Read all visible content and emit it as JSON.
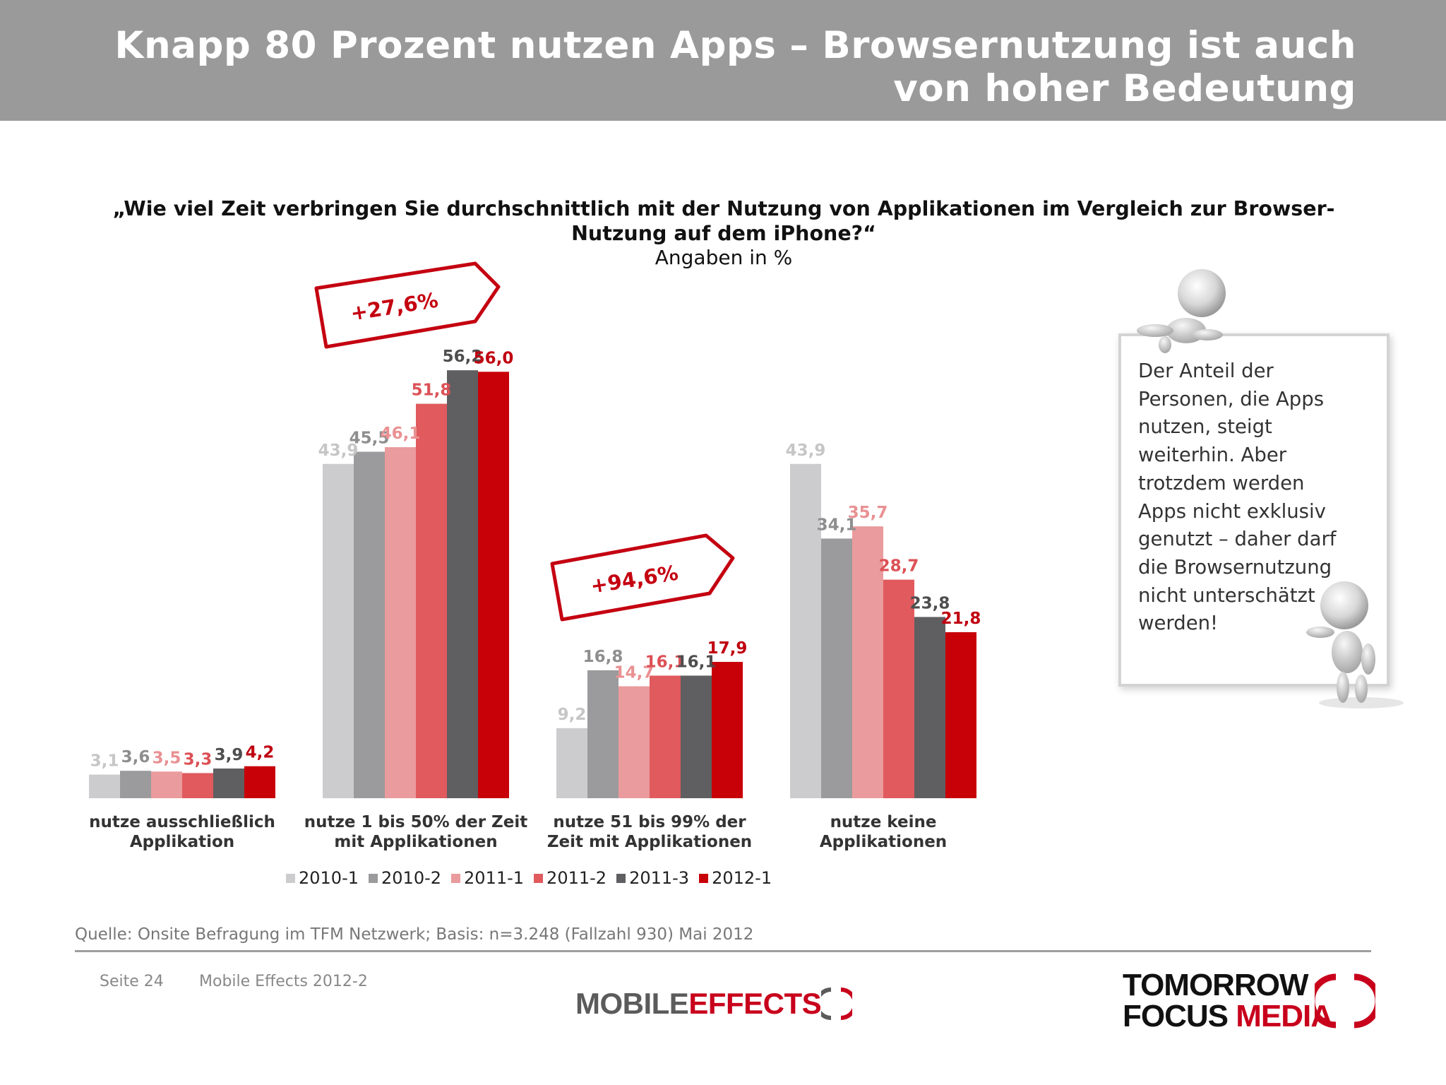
{
  "header": {
    "title_line1": "Knapp 80 Prozent nutzen Apps – Browsernutzung ist auch",
    "title_line2": "von hoher Bedeutung"
  },
  "question": {
    "line1": "„Wie viel Zeit verbringen Sie durchschnittlich mit der Nutzung von Applikationen im Vergleich zur Browser-",
    "line2": "Nutzung auf dem iPhone?“",
    "subtitle": "Angaben in %"
  },
  "chart_data": {
    "type": "bar",
    "categories": [
      [
        "nutze ausschließlich",
        "Applikation"
      ],
      [
        "nutze 1 bis 50% der Zeit",
        "mit Applikationen"
      ],
      [
        "nutze 51 bis 99% der",
        "Zeit mit Applikationen"
      ],
      [
        "nutze keine",
        "Applikationen"
      ]
    ],
    "series": [
      {
        "name": "2010-1",
        "color": "#cccbcd",
        "label_color": "#c6c6c6",
        "values": [
          3.1,
          43.9,
          9.2,
          43.9
        ],
        "labels": [
          "3,1",
          "43,9",
          "9,2",
          "43,9"
        ]
      },
      {
        "name": "2010-2",
        "color": "#9b9a9c",
        "label_color": "#8e8e8e",
        "values": [
          3.6,
          45.5,
          16.8,
          34.1
        ],
        "labels": [
          "3,6",
          "45,5",
          "16,8",
          "34,1"
        ]
      },
      {
        "name": "2011-1",
        "color": "#ea9b9d",
        "label_color": "#e99193",
        "values": [
          3.5,
          46.1,
          14.7,
          35.7
        ],
        "labels": [
          "3,5",
          "46,1",
          "14,7",
          "35,7"
        ]
      },
      {
        "name": "2011-2",
        "color": "#e05a5e",
        "label_color": "#dc5156",
        "values": [
          3.3,
          51.8,
          16.1,
          28.7
        ],
        "labels": [
          "3,3",
          "51,8",
          "16,1",
          "28,7"
        ]
      },
      {
        "name": "2011-3",
        "color": "#5f5e61",
        "label_color": "#4e4e4e",
        "values": [
          3.9,
          56.2,
          16.1,
          23.8
        ],
        "labels": [
          "3,9",
          "56,2",
          "16,1",
          "23,8"
        ]
      },
      {
        "name": "2012-1",
        "color": "#c80008",
        "label_color": "#c00010",
        "values": [
          4.2,
          56.0,
          17.9,
          21.8
        ],
        "labels": [
          "4,2",
          "56,0",
          "17,9",
          "21,8"
        ]
      }
    ],
    "annotations": [
      {
        "text": "+27,6%",
        "category_index": 1
      },
      {
        "text": "+94,6%",
        "category_index": 2
      }
    ],
    "ylim": [
      0,
      60
    ],
    "grid": false,
    "legend_position": "bottom"
  },
  "note": {
    "text": "Der Anteil der Personen, die Apps nutzen, steigt weiterhin. Aber trotzdem werden Apps nicht exklusiv genutzt – daher darf die Browsernutzung nicht unterschätzt werden!"
  },
  "footer": {
    "source": "Quelle: Onsite Befragung im TFM Netzwerk; Basis: n=3.248 (Fallzahl 930) Mai 2012",
    "page": "Seite 24",
    "report": "Mobile Effects 2012-2",
    "logo_mobile": "MOBILE",
    "logo_effects": "EFFECTS",
    "logo_tomorrow": "TOMORROW",
    "logo_focus": "FOCUS",
    "logo_media": "MEDIA",
    "brand_red": "#c8001c"
  }
}
